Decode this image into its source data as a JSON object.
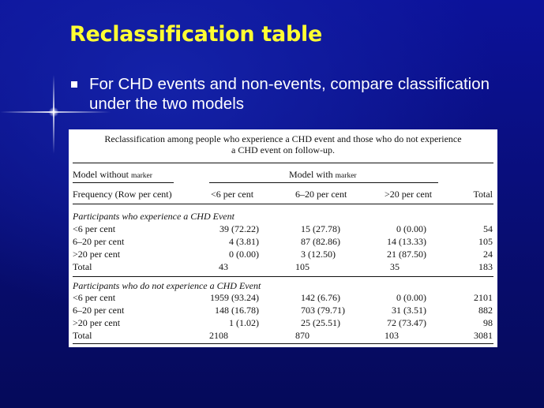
{
  "slide": {
    "title": "Reclassification table",
    "bullet_text": "For CHD events and non-events, compare classification  under the two models"
  },
  "table": {
    "caption_line1": "Reclassification among people who experience a CHD event and those who do not experience",
    "caption_line2": "a CHD event on follow-up.",
    "model_without": "Model without",
    "model_with": "Model with",
    "marker": "marker",
    "freq_label": "Frequency (Row per cent)",
    "col_headers": [
      "<6 per cent",
      "6–20 per cent",
      ">20 per cent",
      "Total"
    ],
    "section_events": {
      "label": "Participants who experience a CHD Event",
      "rows": [
        {
          "label": "<6 per cent",
          "c1": "39 (72.22)",
          "c2": "15 (27.78)",
          "c3": "0 (0.00)",
          "total": "54"
        },
        {
          "label": "6–20 per cent",
          "c1": "4 (3.81)",
          "c2": "87 (82.86)",
          "c3": "14 (13.33)",
          "total": "105"
        },
        {
          "label": ">20 per cent",
          "c1": "0 (0.00)",
          "c2": "3 (12.50)",
          "c3": "21 (87.50)",
          "total": "24"
        },
        {
          "label": "Total",
          "c1": "43",
          "c2": "105",
          "c3": "35",
          "total": "183"
        }
      ]
    },
    "section_nonevents": {
      "label": "Participants who do not experience a CHD Event",
      "rows": [
        {
          "label": "<6 per cent",
          "c1": "1959 (93.24)",
          "c2": "142 (6.76)",
          "c3": "0 (0.00)",
          "total": "2101"
        },
        {
          "label": "6–20 per cent",
          "c1": "148 (16.78)",
          "c2": "703 (79.71)",
          "c3": "31 (3.51)",
          "total": "882"
        },
        {
          "label": ">20 per cent",
          "c1": "1 (1.02)",
          "c2": "25 (25.51)",
          "c3": "72 (73.47)",
          "total": "98"
        },
        {
          "label": "Total",
          "c1": "2108",
          "c2": "870",
          "c3": "103",
          "total": "3081"
        }
      ]
    }
  }
}
